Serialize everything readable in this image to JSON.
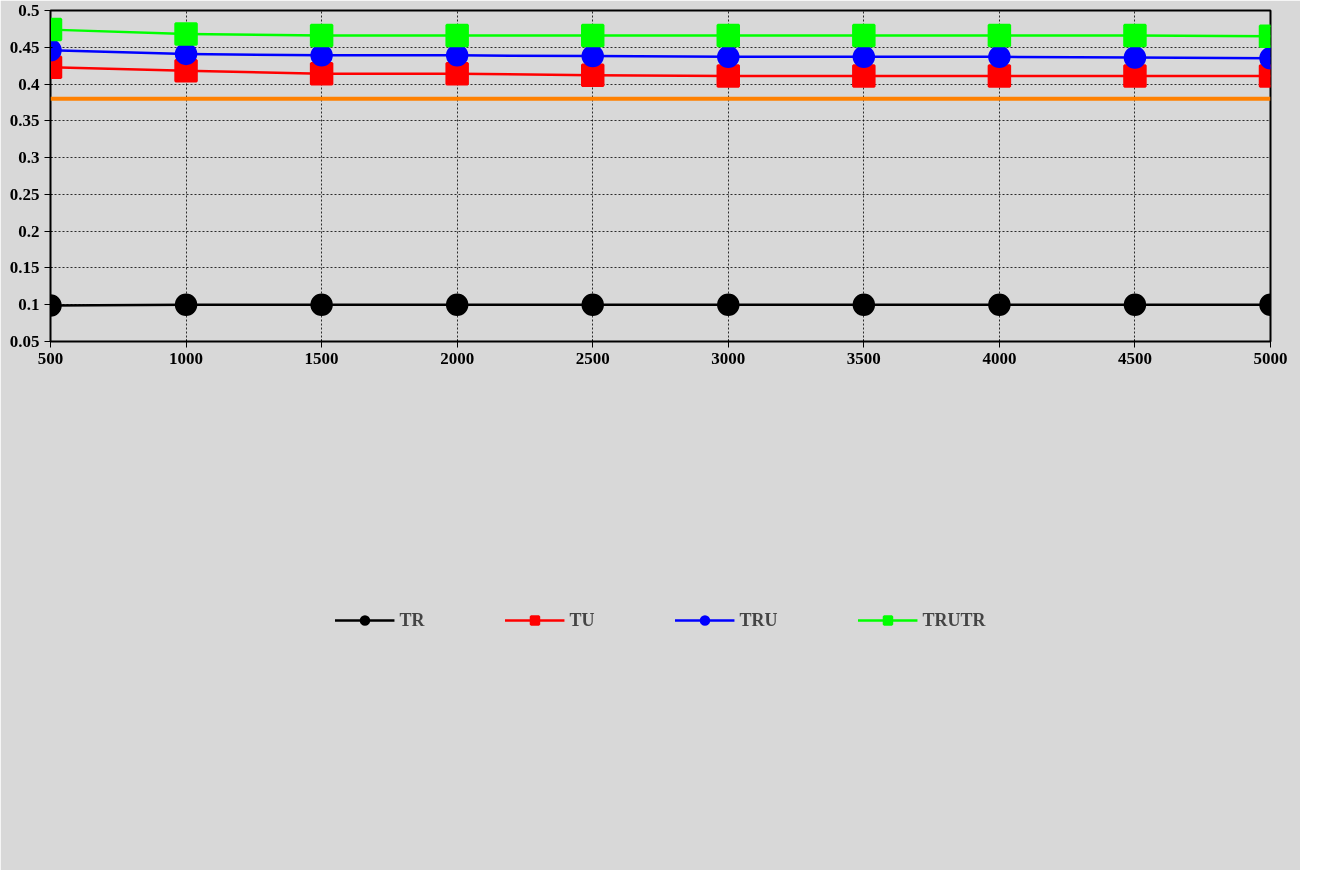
{
  "chart_data": {
    "type": "line",
    "x": [
      500,
      1000,
      1500,
      2000,
      2500,
      3000,
      3500,
      4000,
      4500,
      5000
    ],
    "series": [
      {
        "name": "TR",
        "color": "#000000",
        "marker": "circle",
        "values": [
          0.099,
          0.1,
          0.1,
          0.1,
          0.1,
          0.1,
          0.1,
          0.1,
          0.1,
          0.1
        ]
      },
      {
        "name": "TU",
        "color": "#ff0000",
        "marker": "square",
        "values": [
          0.423,
          0.418,
          0.414,
          0.414,
          0.412,
          0.411,
          0.411,
          0.411,
          0.411,
          0.411
        ]
      },
      {
        "name": "TRU",
        "color": "#0000ff",
        "marker": "circle",
        "values": [
          0.446,
          0.441,
          0.439,
          0.439,
          0.438,
          0.437,
          0.437,
          0.437,
          0.436,
          0.435
        ]
      },
      {
        "name": "TRUTR",
        "color": "#00ff00",
        "marker": "square",
        "values": [
          0.474,
          0.468,
          0.466,
          0.466,
          0.466,
          0.466,
          0.466,
          0.466,
          0.466,
          0.465
        ]
      }
    ],
    "ref_lines": [
      {
        "axis": "y",
        "value": 0.38,
        "color": "#ff8000"
      }
    ],
    "xlim": [
      500,
      5000
    ],
    "xticks": [
      500,
      1000,
      1500,
      2000,
      2500,
      3000,
      3500,
      4000,
      4500,
      5000
    ],
    "ylim": [
      0.05,
      0.5
    ],
    "yticks": [
      0.05,
      0.1,
      0.15,
      0.2,
      0.25,
      0.3,
      0.35,
      0.4,
      0.45,
      0.5
    ],
    "grid": true,
    "legend": "bottom",
    "line_style": "solid"
  }
}
